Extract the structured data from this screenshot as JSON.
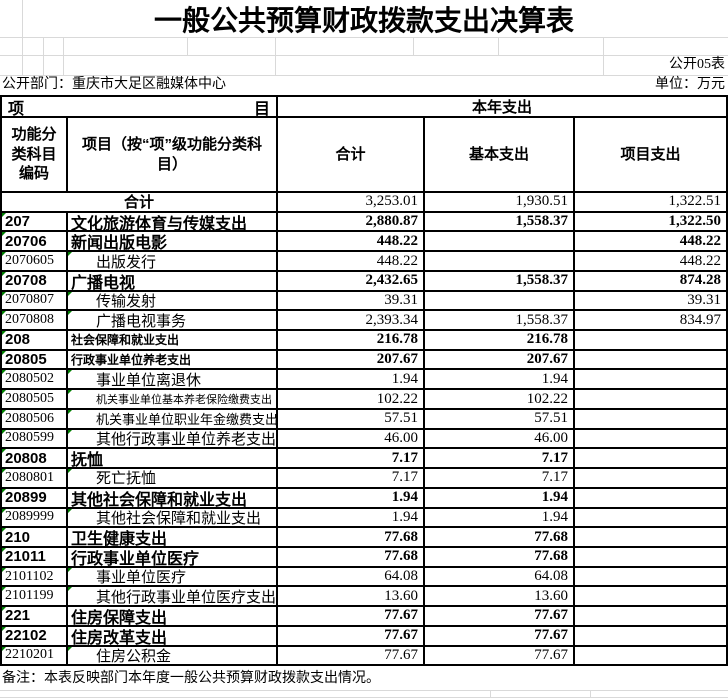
{
  "title": "一般公共预算财政拨款支出决算表",
  "meta": {
    "sheet_no": "公开05表",
    "department": "公开部门：重庆市大足区融媒体中心",
    "unit": "单位：万元"
  },
  "table": {
    "header": {
      "item_char_left": "项",
      "item_char_right": "目",
      "current_year": "本年支出",
      "code_col": "功能分类科目编码",
      "name_col": "项目（按“项”级功能分类科目）",
      "total_col": "合计",
      "basic_col": "基本支出",
      "project_col": "项目支出"
    },
    "summary": {
      "label": "合计",
      "total": "3,253.01",
      "basic": "1,930.51",
      "project": "1,322.51"
    }
  },
  "rows": [
    {
      "code": "207",
      "name": "文化旅游体育与传媒支出",
      "total": "2,880.87",
      "basic": "1,558.37",
      "project": "1,322.50",
      "bold": true
    },
    {
      "code": "20706",
      "name": "新闻出版电影",
      "total": "448.22",
      "basic": "",
      "project": "448.22",
      "bold": true
    },
    {
      "code": "2070605",
      "name": "出版发行",
      "total": "448.22",
      "basic": "",
      "project": "448.22",
      "bold": false
    },
    {
      "code": "20708",
      "name": "广播电视",
      "total": "2,432.65",
      "basic": "1,558.37",
      "project": "874.28",
      "bold": true
    },
    {
      "code": "2070807",
      "name": "传输发射",
      "total": "39.31",
      "basic": "",
      "project": "39.31",
      "bold": false
    },
    {
      "code": "2070808",
      "name": "广播电视事务",
      "total": "2,393.34",
      "basic": "1,558.37",
      "project": "834.97",
      "bold": false
    },
    {
      "code": "208",
      "name": "社会保障和就业支出",
      "total": "216.78",
      "basic": "216.78",
      "project": "",
      "bold": true,
      "size": 12
    },
    {
      "code": "20805",
      "name": "行政事业单位养老支出",
      "total": "207.67",
      "basic": "207.67",
      "project": "",
      "bold": true,
      "size": 12
    },
    {
      "code": "2080502",
      "name": "事业单位离退休",
      "total": "1.94",
      "basic": "1.94",
      "project": "",
      "bold": false
    },
    {
      "code": "2080505",
      "name": "机关事业单位基本养老保险缴费支出",
      "total": "102.22",
      "basic": "102.22",
      "project": "",
      "bold": false,
      "size": 11
    },
    {
      "code": "2080506",
      "name": "机关事业单位职业年金缴费支出",
      "total": "57.51",
      "basic": "57.51",
      "project": "",
      "bold": false,
      "size": 13
    },
    {
      "code": "2080599",
      "name": "其他行政事业单位养老支出",
      "total": "46.00",
      "basic": "46.00",
      "project": "",
      "bold": false
    },
    {
      "code": "20808",
      "name": "抚恤",
      "total": "7.17",
      "basic": "7.17",
      "project": "",
      "bold": true
    },
    {
      "code": "2080801",
      "name": "死亡抚恤",
      "total": "7.17",
      "basic": "7.17",
      "project": "",
      "bold": false
    },
    {
      "code": "20899",
      "name": "其他社会保障和就业支出",
      "total": "1.94",
      "basic": "1.94",
      "project": "",
      "bold": true
    },
    {
      "code": "2089999",
      "name": "其他社会保障和就业支出",
      "total": "1.94",
      "basic": "1.94",
      "project": "",
      "bold": false
    },
    {
      "code": "210",
      "name": "卫生健康支出",
      "total": "77.68",
      "basic": "77.68",
      "project": "",
      "bold": true
    },
    {
      "code": "21011",
      "name": "行政事业单位医疗",
      "total": "77.68",
      "basic": "77.68",
      "project": "",
      "bold": true
    },
    {
      "code": "2101102",
      "name": "事业单位医疗",
      "total": "64.08",
      "basic": "64.08",
      "project": "",
      "bold": false
    },
    {
      "code": "2101199",
      "name": "其他行政事业单位医疗支出",
      "total": "13.60",
      "basic": "13.60",
      "project": "",
      "bold": false
    },
    {
      "code": "221",
      "name": "住房保障支出",
      "total": "77.67",
      "basic": "77.67",
      "project": "",
      "bold": true
    },
    {
      "code": "22102",
      "name": "住房改革支出",
      "total": "77.67",
      "basic": "77.67",
      "project": "",
      "bold": true
    },
    {
      "code": "2210201",
      "name": "住房公积金",
      "total": "77.67",
      "basic": "77.67",
      "project": "",
      "bold": false
    }
  ],
  "footnote": "备注：本表反映部门本年度一般公共预算财政拨款支出情况。",
  "colors": {
    "border": "#000000",
    "gridline": "#d9d9d9",
    "error_flag_green": "#008000",
    "background": "#ffffff",
    "text": "#000000"
  }
}
